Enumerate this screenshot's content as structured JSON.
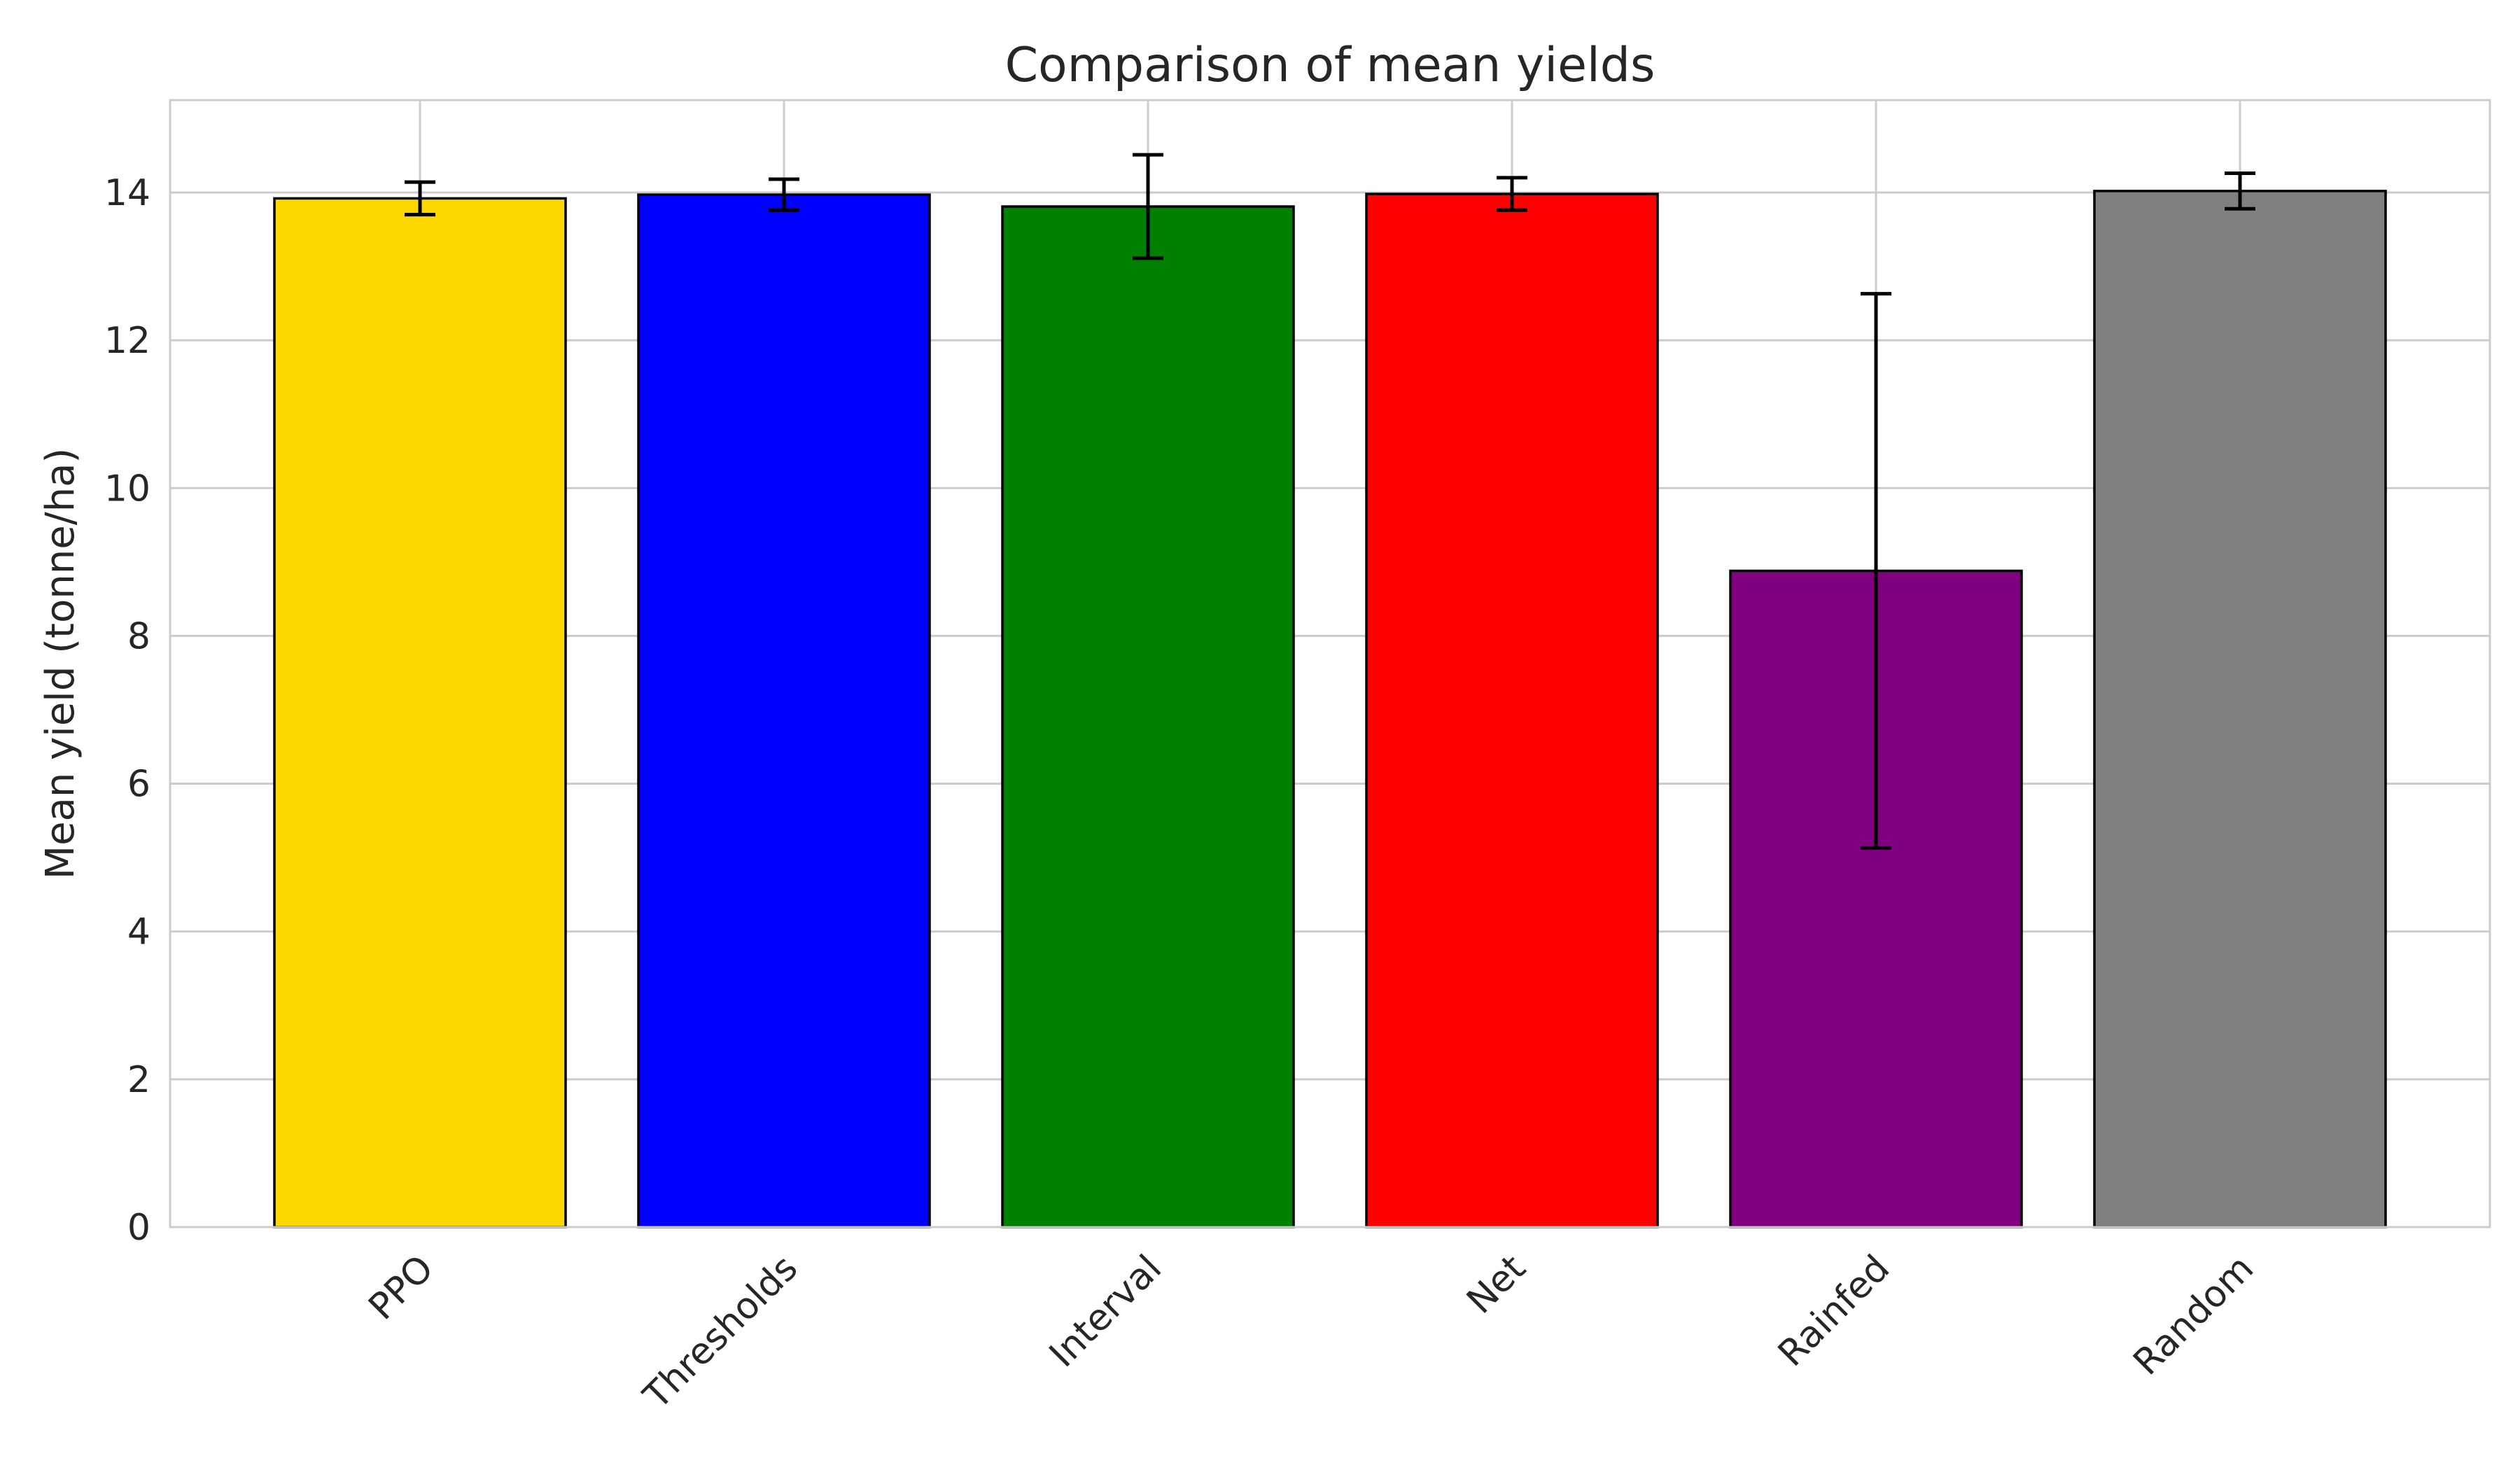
{
  "chart_data": {
    "type": "bar",
    "title": "Comparison of mean yields",
    "xlabel": "",
    "ylabel": "Mean yield (tonne/ha)",
    "ylim": [
      0,
      15.25
    ],
    "yticks": [
      0,
      2,
      4,
      6,
      8,
      10,
      12,
      14
    ],
    "grid": true,
    "categories": [
      "PPO",
      "Thresholds",
      "Interval",
      "Net",
      "Rainfed",
      "Random"
    ],
    "values": [
      13.92,
      13.97,
      13.81,
      13.98,
      8.88,
      14.02
    ],
    "errors": [
      0.22,
      0.21,
      0.7,
      0.22,
      3.75,
      0.24
    ],
    "colors": [
      "#FFD700",
      "#0000FF",
      "#008000",
      "#FF0000",
      "#800080",
      "#808080"
    ],
    "tick_rotation_deg": -45
  }
}
